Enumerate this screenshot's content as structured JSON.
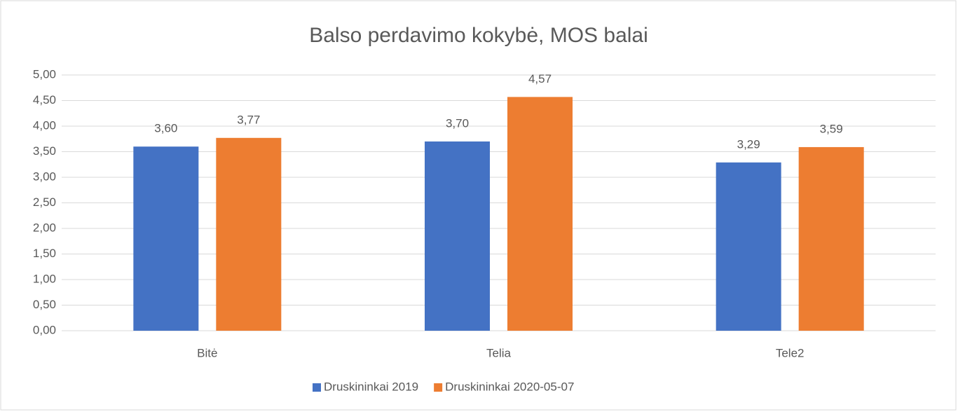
{
  "chart_data": {
    "type": "bar",
    "title": "Balso perdavimo kokybė, MOS balai",
    "categories": [
      "Bitė",
      "Telia",
      "Tele2"
    ],
    "series": [
      {
        "name": "Druskininkai 2019",
        "color": "#4472c4",
        "values": [
          3.6,
          3.7,
          3.29
        ],
        "value_labels": [
          "3,60",
          "3,70",
          "3,29"
        ]
      },
      {
        "name": "Druskininkai 2020-05-07",
        "color": "#ed7d31",
        "values": [
          3.77,
          4.57,
          3.59
        ],
        "value_labels": [
          "3,77",
          "4,57",
          "3,59"
        ]
      }
    ],
    "ylim": [
      0,
      5
    ],
    "yticks": [
      {
        "value": 0,
        "label": "0,00"
      },
      {
        "value": 0.5,
        "label": "0,50"
      },
      {
        "value": 1,
        "label": "1,00"
      },
      {
        "value": 1.5,
        "label": "1,50"
      },
      {
        "value": 2,
        "label": "2,00"
      },
      {
        "value": 2.5,
        "label": "2,50"
      },
      {
        "value": 3,
        "label": "3,00"
      },
      {
        "value": 3.5,
        "label": "3,50"
      },
      {
        "value": 4,
        "label": "4,00"
      },
      {
        "value": 4.5,
        "label": "4,50"
      },
      {
        "value": 5,
        "label": "5,00"
      }
    ],
    "grid": true,
    "legend": "bottom"
  }
}
